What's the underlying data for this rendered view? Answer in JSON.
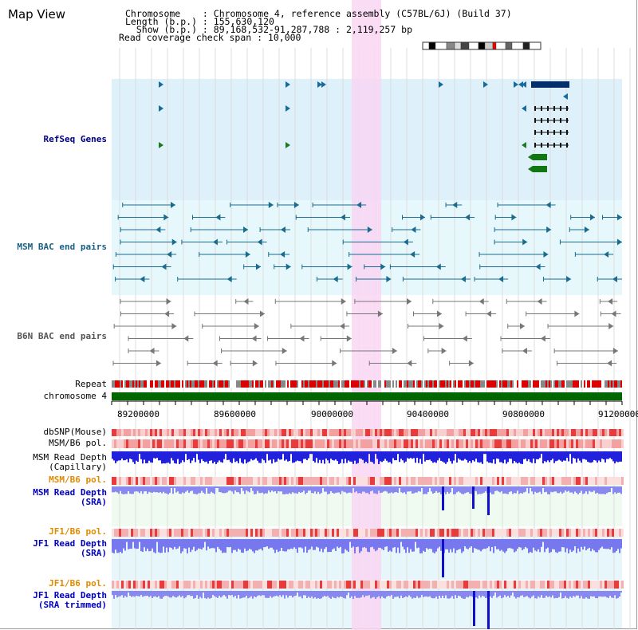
{
  "title": "Map View",
  "header": {
    "chromosome_line": "Chromosome    : Chromosome 4, reference assembly (C57BL/6J) (Build 37)",
    "length_line": "Length (b.p.) : 155,630,120",
    "show_line": "  Show (b.p.) : 89,168,532-91,287,788 : 2,119,257 bp",
    "coverage_line": "Read coverage check span : 10,000"
  },
  "tracks": {
    "refseq": "RefSeq Genes",
    "msm_bac": "MSM BAC end pairs",
    "b6n_bac": "B6N BAC end pairs",
    "repeat": "Repeat",
    "chromosome": "chromosome 4",
    "dbsnp": "dbSNP(Mouse)",
    "msm_b6_pol_1": "MSM/B6 pol.",
    "msm_read_depth_cap_1": "MSM Read Depth",
    "msm_read_depth_cap_2": "(Capillary)",
    "msm_b6_pol_2": "MSM/B6 pol.",
    "msm_read_depth_sra_1": "MSM Read Depth",
    "msm_read_depth_sra_2": "(SRA)",
    "jf1_b6_pol_1": "JF1/B6 pol.",
    "jf1_read_depth_sra_1": "JF1 Read Depth",
    "jf1_read_depth_sra_2": "(SRA)",
    "jf1_b6_pol_2": "JF1/B6 pol.",
    "jf1_read_depth_trim_1": "JF1 Read Depth",
    "jf1_read_depth_trim_2": "(SRA trimmed)"
  },
  "axis": {
    "ticks": [
      "89200000",
      "89600000",
      "90000000",
      "90400000",
      "90800000",
      "91200000"
    ]
  },
  "colors": {
    "highlight": "#f9d6f3",
    "refseq_bg": "#def0fa",
    "bac_bg": "#e6f8fb",
    "chromosome_bar": "#006600",
    "refseq_gene": "#00336b",
    "msm_bac": "#1a6b8f",
    "b6n_bac": "#777777"
  }
}
